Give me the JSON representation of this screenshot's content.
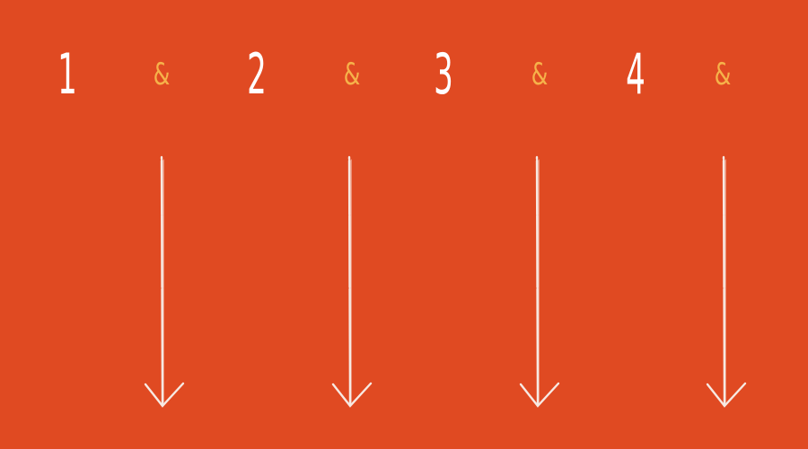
{
  "counts": [
    {
      "beat": "1",
      "and": "&"
    },
    {
      "beat": "2",
      "and": "&"
    },
    {
      "beat": "3",
      "and": "&"
    },
    {
      "beat": "4",
      "and": "&"
    }
  ],
  "colors": {
    "background": "#e04a22",
    "beat": "#ffffff",
    "and": "#f6b24a",
    "arrow": "#f7e9e2"
  },
  "icons": [
    "down-arrow-icon"
  ]
}
